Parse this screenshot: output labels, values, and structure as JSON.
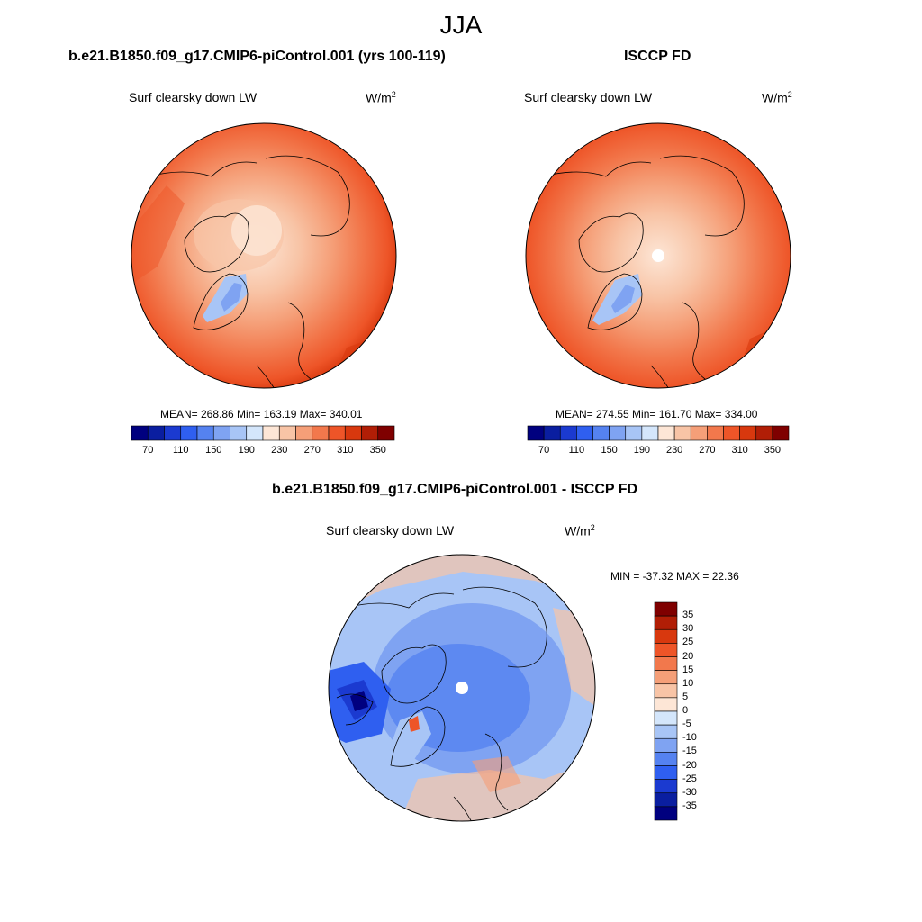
{
  "season": "JJA",
  "panels": [
    {
      "title": "b.e21.B1850.f09_g17.CMIP6-piControl.001 (yrs 100-119)",
      "variable": "Surf clearsky down LW",
      "units_base": "W/m",
      "units_exp": "2",
      "stats": "MEAN= 268.86  Min= 163.19  Max= 340.01"
    },
    {
      "title": "ISCCP FD",
      "variable": "Surf clearsky down LW",
      "units_base": "W/m",
      "units_exp": "2",
      "stats": "MEAN= 274.55  Min= 161.70  Max= 334.00"
    },
    {
      "title": "b.e21.B1850.f09_g17.CMIP6-piControl.001 - ISCCP FD",
      "variable": "Surf clearsky down LW",
      "units_base": "W/m",
      "units_exp": "2",
      "stats": "MIN = -37.32 MAX =  22.36"
    }
  ],
  "colorbar_abs": {
    "colors": [
      "#00007f",
      "#0a1ea0",
      "#1b3ad0",
      "#2f5ff0",
      "#5582f0",
      "#7fa3f2",
      "#a8c5f6",
      "#d4e6fb",
      "#fde6d6",
      "#f8c4a6",
      "#f59f78",
      "#f2784c",
      "#ee5528",
      "#d8380e",
      "#b11e06",
      "#7f0000"
    ],
    "labels": [
      "70",
      "110",
      "150",
      "190",
      "230",
      "270",
      "310",
      "350"
    ]
  },
  "colorbar_diff": {
    "colors": [
      "#00007f",
      "#0a1ea0",
      "#1b3ad0",
      "#2f5ff0",
      "#5582f0",
      "#7fa3f2",
      "#a8c5f6",
      "#d4e6fb",
      "#fde6d6",
      "#f8c4a6",
      "#f59f78",
      "#f2784c",
      "#ee5528",
      "#d8380e",
      "#b11e06",
      "#7f0000"
    ],
    "labels": [
      "-35",
      "-30",
      "-25",
      "-20",
      "-15",
      "-10",
      "-5",
      "0",
      "5",
      "10",
      "15",
      "20",
      "25",
      "30",
      "35"
    ]
  },
  "icons": {
    "map": "polar-stereographic-map"
  }
}
